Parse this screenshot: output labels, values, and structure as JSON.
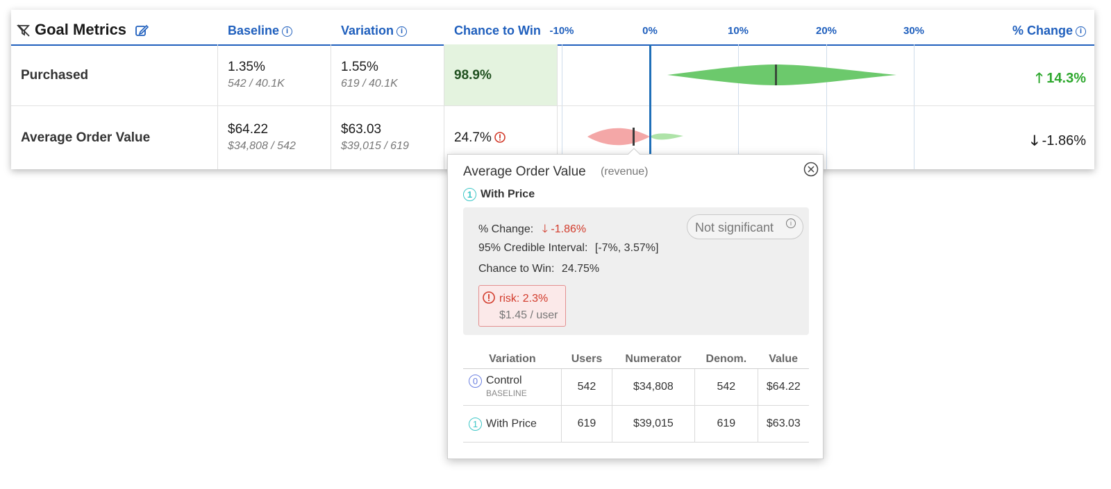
{
  "header": {
    "title": "Goal Metrics",
    "baseline_label": "Baseline",
    "variation_label": "Variation",
    "chance_label": "Chance to Win",
    "change_label": "% Change",
    "axis_ticks": [
      "-10%",
      "0%",
      "10%",
      "20%",
      "30%"
    ]
  },
  "rows": [
    {
      "name": "Purchased",
      "baseline_value": "1.35%",
      "baseline_sub": "542 / 40.1K",
      "variation_value": "1.55%",
      "variation_sub": "619 / 40.1K",
      "chance": "98.9%",
      "change": "14.3%",
      "change_icon": "arrow-up-icon"
    },
    {
      "name": "Average Order Value",
      "baseline_value": "$64.22",
      "baseline_sub": "$34,808 / 542",
      "variation_value": "$63.03",
      "variation_sub": "$39,015 / 619",
      "chance": "24.7%",
      "change": "-1.86%",
      "change_icon": "arrow-down-icon"
    }
  ],
  "popover": {
    "title": "Average Order Value",
    "type": "(revenue)",
    "variation_num": "1",
    "variation_name": "With Price",
    "pct_change_label": "% Change:",
    "pct_change_value": "-1.86%",
    "ci_label": "95% Credible Interval:",
    "ci_value": "[-7%, 3.57%]",
    "ctw_label": "Chance to Win:",
    "ctw_value": "24.75%",
    "significance": "Not significant",
    "risk": "risk: 2.3%",
    "risk_sub": "$1.45 / user",
    "table": {
      "headers": [
        "Variation",
        "Users",
        "Numerator",
        "Denom.",
        "Value"
      ],
      "rows": [
        {
          "num": "0",
          "name": "Control",
          "tag": "BASELINE",
          "users": "542",
          "numerator": "$34,808",
          "denom": "542",
          "value": "$64.22"
        },
        {
          "num": "1",
          "name": "With Price",
          "tag": "",
          "users": "619",
          "numerator": "$39,015",
          "denom": "619",
          "value": "$63.03"
        }
      ]
    }
  },
  "colors": {
    "accent": "#1f5fbd",
    "positive": "#2ea82e",
    "negative": "#d23a2a",
    "chance_bg": "#e4f3df"
  }
}
